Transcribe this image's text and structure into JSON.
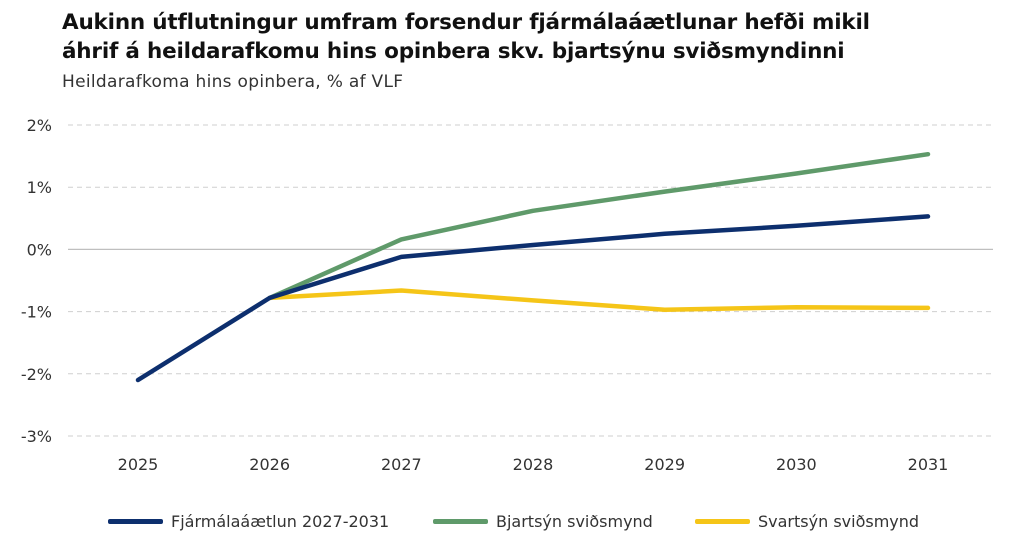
{
  "chart_data": {
    "type": "line",
    "title_lines": [
      "Aukinn útflutningur umfram forsendur fjármálaáætlunar hefði mikil",
      "áhrif á heildarafkomu hins opinbera skv. bjartsýnu sviðsmyndinni"
    ],
    "subtitle": "Heildarafkoma hins opinbera, % af VLF",
    "x": [
      "2025",
      "2026",
      "2027",
      "2028",
      "2029",
      "2030",
      "2031"
    ],
    "y_ticks": [
      2,
      1,
      0,
      -1,
      -2,
      -3
    ],
    "y_tick_labels": [
      "2%",
      "1%",
      "0%",
      "-1%",
      "-2%",
      "-3%"
    ],
    "ylim": [
      -3,
      2
    ],
    "grid": true,
    "legend_position": "bottom",
    "series": [
      {
        "name": "Fjármálaáætlun 2027-2031",
        "color": "#0d2f6e",
        "values": [
          -2.1,
          -0.78,
          -0.12,
          0.07,
          0.25,
          0.38,
          0.53
        ]
      },
      {
        "name": "Bjartsýn sviðsmynd",
        "color": "#5f9a6a",
        "values": [
          null,
          -0.78,
          0.16,
          0.62,
          0.93,
          1.22,
          1.53
        ]
      },
      {
        "name": "Svartsýn sviðsmynd",
        "color": "#f5c518",
        "values": [
          null,
          -0.78,
          -0.66,
          -0.82,
          -0.97,
          -0.93,
          -0.94
        ]
      }
    ]
  }
}
